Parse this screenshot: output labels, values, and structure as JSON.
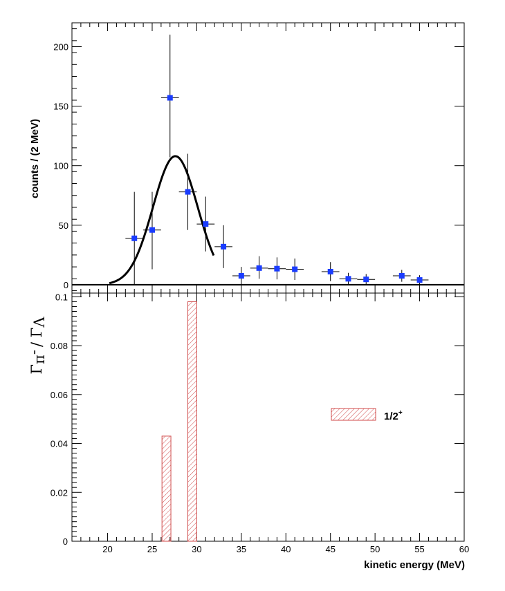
{
  "chart_data": [
    {
      "type": "scatter",
      "panel": "top",
      "ylabel": "counts / (2 MeV)",
      "xlim": [
        16,
        60
      ],
      "ylim": [
        -7,
        220
      ],
      "yticks": [
        0,
        50,
        100,
        150,
        200
      ],
      "points": [
        {
          "x": 23,
          "y": 39,
          "ey_lo": 39,
          "ey_hi": 39,
          "ex": 1
        },
        {
          "x": 25,
          "y": 46,
          "ey_lo": 33,
          "ey_hi": 32,
          "ex": 1
        },
        {
          "x": 27,
          "y": 157,
          "ey_lo": 50,
          "ey_hi": 53,
          "ex": 1
        },
        {
          "x": 29,
          "y": 78,
          "ey_lo": 32,
          "ey_hi": 32,
          "ex": 1
        },
        {
          "x": 31,
          "y": 51,
          "ey_lo": 23,
          "ey_hi": 23,
          "ex": 1
        },
        {
          "x": 33,
          "y": 32,
          "ey_lo": 18,
          "ey_hi": 18,
          "ex": 1
        },
        {
          "x": 35,
          "y": 7.5,
          "ey_lo": 7.5,
          "ey_hi": 7.5,
          "ex": 1
        },
        {
          "x": 37,
          "y": 14,
          "ey_lo": 9,
          "ey_hi": 10,
          "ex": 1
        },
        {
          "x": 39,
          "y": 13.5,
          "ey_lo": 9,
          "ey_hi": 9.5,
          "ex": 1
        },
        {
          "x": 41,
          "y": 13,
          "ey_lo": 9,
          "ey_hi": 9,
          "ex": 1
        },
        {
          "x": 45,
          "y": 11,
          "ey_lo": 8,
          "ey_hi": 8,
          "ex": 1
        },
        {
          "x": 47,
          "y": 5,
          "ey_lo": 5,
          "ey_hi": 5,
          "ex": 1
        },
        {
          "x": 49,
          "y": 4.5,
          "ey_lo": 4.5,
          "ey_hi": 4.5,
          "ex": 1
        },
        {
          "x": 53,
          "y": 7.5,
          "ey_lo": 5,
          "ey_hi": 5,
          "ex": 1
        },
        {
          "x": 55,
          "y": 4,
          "ey_lo": 4,
          "ey_hi": 4,
          "ex": 1
        }
      ],
      "fit_curve": {
        "shape": "gaussian",
        "amplitude": 108,
        "mean": 27.6,
        "sigma": 2.5,
        "x_range": [
          20.2,
          31.9
        ]
      },
      "marker_color": "#1a3cff",
      "curve_color": "#000000"
    },
    {
      "type": "bar",
      "panel": "bottom",
      "xlabel": "kinetic energy (MeV)",
      "ylabel_main": "Γ",
      "ylabel_sub1": "π",
      "ylabel_sup1": "-",
      "ylabel_sep": "/ Γ",
      "ylabel_sub2": "Λ",
      "xlim": [
        16,
        60
      ],
      "ylim": [
        0,
        0.1015
      ],
      "xticks": [
        20,
        25,
        30,
        35,
        40,
        45,
        50,
        55,
        60
      ],
      "yticks": [
        0,
        0.02,
        0.04,
        0.06,
        0.08,
        0.1
      ],
      "ytick_labels": [
        "0",
        "0.02",
        "0.04",
        "0.06",
        "0.08",
        "0.1"
      ],
      "bars": [
        {
          "x0": 26.1,
          "x1": 27.1,
          "value": 0.043
        },
        {
          "x0": 29.0,
          "x1": 30.0,
          "value": 0.098
        }
      ],
      "hatch_color": "#d04a4a",
      "legend": [
        {
          "label": "1/2",
          "superscript": "+",
          "position": "right"
        }
      ]
    }
  ]
}
